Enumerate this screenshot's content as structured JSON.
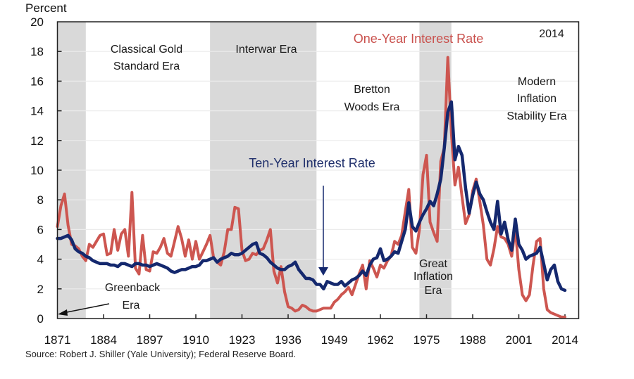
{
  "chart_data": {
    "type": "line",
    "title": "",
    "ylabel": "Percent",
    "xlabel": "",
    "xlim": [
      1871,
      2014
    ],
    "ylim": [
      0,
      20
    ],
    "yticks": [
      0,
      2,
      4,
      6,
      8,
      10,
      12,
      14,
      16,
      18,
      20
    ],
    "xticks": [
      1871,
      1884,
      1897,
      1910,
      1923,
      1936,
      1949,
      1962,
      1975,
      1988,
      2001,
      2014
    ],
    "grid": true,
    "year_marker": "2014",
    "source": "Source:  Robert J. Shiller  (Yale University);  Federal  Reserve  Board.",
    "shaded_eras": [
      {
        "name": "Greenback Era",
        "start": 1871,
        "end": 1879
      },
      {
        "name": "Interwar Era",
        "start": 1914,
        "end": 1944
      },
      {
        "name": "Great Inflation Era",
        "start": 1973,
        "end": 1982
      }
    ],
    "era_labels": {
      "classical_gold_1": "Classical Gold",
      "classical_gold_2": "Standard Era",
      "interwar": "Interwar Era",
      "bretton_1": "Bretton",
      "bretton_2": "Woods Era",
      "modern_1": "Modern",
      "modern_2": "Inflation",
      "modern_3": "Stability Era",
      "great_1": "Great",
      "great_2": "Inflation",
      "great_3": "Era",
      "greenback_1": "Greenback",
      "greenback_2": "Era"
    },
    "series": [
      {
        "name": "One-Year Interest Rate",
        "color": "#cd5650",
        "x": [
          1871,
          1872,
          1873,
          1874,
          1875,
          1876,
          1877,
          1878,
          1879,
          1880,
          1881,
          1882,
          1883,
          1884,
          1885,
          1886,
          1887,
          1888,
          1889,
          1890,
          1891,
          1892,
          1893,
          1894,
          1895,
          1896,
          1897,
          1898,
          1899,
          1900,
          1901,
          1902,
          1903,
          1904,
          1905,
          1906,
          1907,
          1908,
          1909,
          1910,
          1911,
          1912,
          1913,
          1914,
          1915,
          1916,
          1917,
          1918,
          1919,
          1920,
          1921,
          1922,
          1923,
          1924,
          1925,
          1926,
          1927,
          1928,
          1929,
          1930,
          1931,
          1932,
          1933,
          1934,
          1935,
          1936,
          1937,
          1938,
          1939,
          1940,
          1941,
          1942,
          1943,
          1944,
          1945,
          1946,
          1947,
          1948,
          1949,
          1950,
          1951,
          1952,
          1953,
          1954,
          1955,
          1956,
          1957,
          1958,
          1959,
          1960,
          1961,
          1962,
          1963,
          1964,
          1965,
          1966,
          1967,
          1968,
          1969,
          1970,
          1971,
          1972,
          1973,
          1974,
          1975,
          1976,
          1977,
          1978,
          1979,
          1980,
          1981,
          1982,
          1983,
          1984,
          1985,
          1986,
          1987,
          1988,
          1989,
          1990,
          1991,
          1992,
          1993,
          1994,
          1995,
          1996,
          1997,
          1998,
          1999,
          2000,
          2001,
          2002,
          2003,
          2004,
          2005,
          2006,
          2007,
          2008,
          2009,
          2010,
          2011,
          2012,
          2013,
          2014
        ],
        "values": [
          6.2,
          7.6,
          8.4,
          6.3,
          5.0,
          4.9,
          4.7,
          4.2,
          3.9,
          5.0,
          4.8,
          5.2,
          5.6,
          5.7,
          4.3,
          4.4,
          6.0,
          4.6,
          5.7,
          6.0,
          4.2,
          8.5,
          3.4,
          3.0,
          5.6,
          3.3,
          3.2,
          4.5,
          4.4,
          4.8,
          5.4,
          4.4,
          4.2,
          5.2,
          6.2,
          5.4,
          4.2,
          5.3,
          4.0,
          5.2,
          4.0,
          4.5,
          5.0,
          5.6,
          4.1,
          3.8,
          3.6,
          4.5,
          6.0,
          6.0,
          7.5,
          7.4,
          4.6,
          3.9,
          4.0,
          4.4,
          4.3,
          4.6,
          4.7,
          5.3,
          6.0,
          3.2,
          2.4,
          3.5,
          1.8,
          0.8,
          0.7,
          0.5,
          0.6,
          0.9,
          0.8,
          0.6,
          0.5,
          0.5,
          0.6,
          0.7,
          0.7,
          0.7,
          1.1,
          1.3,
          1.6,
          1.8,
          2.1,
          1.6,
          2.3,
          3.0,
          3.6,
          2.0,
          3.9,
          3.4,
          2.8,
          3.6,
          3.4,
          3.9,
          4.2,
          5.2,
          5.0,
          5.6,
          7.2,
          8.7,
          4.8,
          4.4,
          6.0,
          9.7,
          11.0,
          6.5,
          5.8,
          5.2,
          10.6,
          11.5,
          17.6,
          12.5,
          9.0,
          10.2,
          8.2,
          6.4,
          7.0,
          8.6,
          9.4,
          7.9,
          6.3,
          4.0,
          3.6,
          4.7,
          6.2,
          5.5,
          5.4,
          5.0,
          4.2,
          6.1,
          3.3,
          1.6,
          1.2,
          1.6,
          3.6,
          5.2,
          5.4,
          2.0,
          0.6,
          0.4,
          0.3,
          0.2,
          0.1,
          0.1
        ]
      },
      {
        "name": "Ten-Year Interest Rate",
        "color": "#14286e",
        "x": [
          1871,
          1872,
          1873,
          1874,
          1875,
          1876,
          1877,
          1878,
          1879,
          1880,
          1881,
          1882,
          1883,
          1884,
          1885,
          1886,
          1887,
          1888,
          1889,
          1890,
          1891,
          1892,
          1893,
          1894,
          1895,
          1896,
          1897,
          1898,
          1899,
          1900,
          1901,
          1902,
          1903,
          1904,
          1905,
          1906,
          1907,
          1908,
          1909,
          1910,
          1911,
          1912,
          1913,
          1914,
          1915,
          1916,
          1917,
          1918,
          1919,
          1920,
          1921,
          1922,
          1923,
          1924,
          1925,
          1926,
          1927,
          1928,
          1929,
          1930,
          1931,
          1932,
          1933,
          1934,
          1935,
          1936,
          1937,
          1938,
          1939,
          1940,
          1941,
          1942,
          1943,
          1944,
          1945,
          1946,
          1947,
          1948,
          1949,
          1950,
          1951,
          1952,
          1953,
          1954,
          1955,
          1956,
          1957,
          1958,
          1959,
          1960,
          1961,
          1962,
          1963,
          1964,
          1965,
          1966,
          1967,
          1968,
          1969,
          1970,
          1971,
          1972,
          1973,
          1974,
          1975,
          1976,
          1977,
          1978,
          1979,
          1980,
          1981,
          1982,
          1983,
          1984,
          1985,
          1986,
          1987,
          1988,
          1989,
          1990,
          1991,
          1992,
          1993,
          1994,
          1995,
          1996,
          1997,
          1998,
          1999,
          2000,
          2001,
          2002,
          2003,
          2004,
          2005,
          2006,
          2007,
          2008,
          2009,
          2010,
          2011,
          2012,
          2013,
          2014
        ],
        "values": [
          5.4,
          5.4,
          5.5,
          5.6,
          5.3,
          4.7,
          4.5,
          4.4,
          4.2,
          4.1,
          3.9,
          3.8,
          3.7,
          3.7,
          3.7,
          3.6,
          3.6,
          3.5,
          3.7,
          3.7,
          3.6,
          3.5,
          3.7,
          3.7,
          3.6,
          3.6,
          3.5,
          3.6,
          3.7,
          3.6,
          3.5,
          3.4,
          3.2,
          3.1,
          3.2,
          3.3,
          3.3,
          3.4,
          3.5,
          3.5,
          3.6,
          3.9,
          3.9,
          4.0,
          4.1,
          3.8,
          4.0,
          4.1,
          4.2,
          4.4,
          4.3,
          4.3,
          4.4,
          4.6,
          4.8,
          5.0,
          5.1,
          4.4,
          4.3,
          4.1,
          3.8,
          3.6,
          3.4,
          3.3,
          3.3,
          3.5,
          3.6,
          3.8,
          3.3,
          3.0,
          2.7,
          2.7,
          2.6,
          2.3,
          2.3,
          2.0,
          2.5,
          2.4,
          2.3,
          2.3,
          2.5,
          2.2,
          2.4,
          2.6,
          2.7,
          2.9,
          3.2,
          2.9,
          3.6,
          4.0,
          4.1,
          4.7,
          3.9,
          4.0,
          4.2,
          4.5,
          4.4,
          5.2,
          6.0,
          7.8,
          6.2,
          5.9,
          6.5,
          7.0,
          7.4,
          7.9,
          7.6,
          8.4,
          9.4,
          11.5,
          13.9,
          14.6,
          10.7,
          11.6,
          11.0,
          8.8,
          7.1,
          8.3,
          9.2,
          8.4,
          8.0,
          7.2,
          6.5,
          6.0,
          7.9,
          5.7,
          6.5,
          5.3,
          4.6,
          6.7,
          5.0,
          4.6,
          4.0,
          4.2,
          4.3,
          4.4,
          4.8,
          3.7,
          2.6,
          3.3,
          3.6,
          2.5,
          2.0,
          1.9
        ]
      }
    ]
  }
}
